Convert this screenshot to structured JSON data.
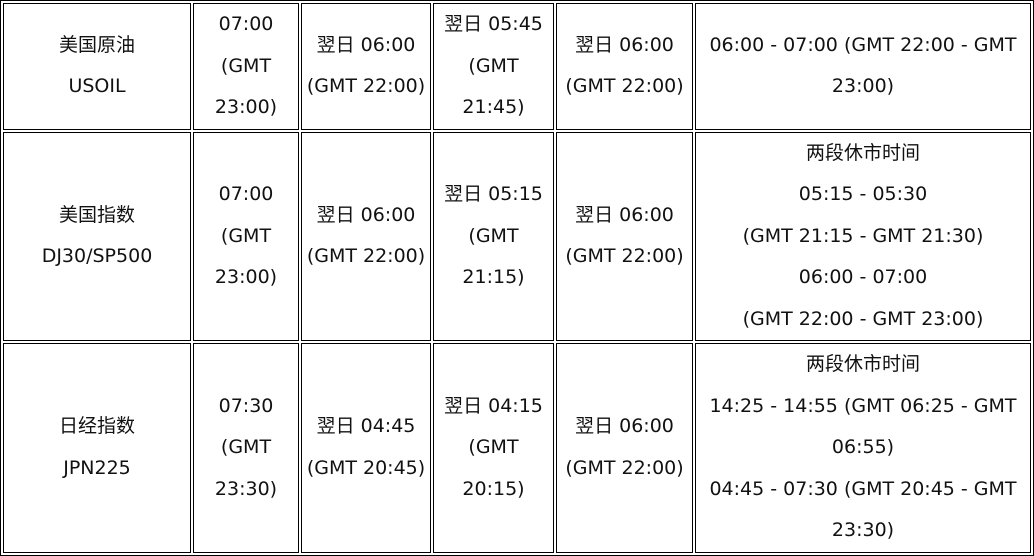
{
  "rows": [
    {
      "product": [
        "美国原油",
        "USOIL"
      ],
      "open": [
        "07:00",
        "(GMT",
        "23:00)"
      ],
      "close_a": [
        "翌日 06:00",
        "(GMT 22:00)"
      ],
      "close_b": [
        "翌日 05:45",
        "(GMT",
        "21:45)"
      ],
      "close_c": [
        "翌日 06:00",
        "(GMT 22:00)"
      ],
      "break": [
        "06:00 - 07:00 (GMT 22:00 - GMT",
        "23:00)"
      ]
    },
    {
      "product": [
        "美国指数",
        "DJ30/SP500"
      ],
      "open": [
        "07:00",
        "(GMT",
        "23:00)"
      ],
      "close_a": [
        "翌日 06:00",
        "(GMT 22:00)"
      ],
      "close_b": [
        "翌日 05:15",
        "(GMT",
        "21:15)"
      ],
      "close_c": [
        "翌日 06:00",
        "(GMT 22:00)"
      ],
      "break": [
        "两段休市时间",
        "05:15 - 05:30",
        "(GMT 21:15 - GMT 21:30)",
        "06:00 - 07:00",
        "(GMT 22:00 - GMT 23:00)"
      ]
    },
    {
      "product": [
        "日经指数",
        "JPN225"
      ],
      "open": [
        "07:30",
        "(GMT",
        "23:30)"
      ],
      "close_a": [
        "翌日 04:45",
        "(GMT 20:45)"
      ],
      "close_b": [
        "翌日 04:15",
        "(GMT",
        "20:15)"
      ],
      "close_c": [
        "翌日 06:00",
        "(GMT 22:00)"
      ],
      "break": [
        "两段休市时间",
        "14:25 - 14:55 (GMT 06:25 - GMT",
        "06:55)",
        "04:45 - 07:30 (GMT 20:45 - GMT",
        "23:30)"
      ]
    }
  ]
}
